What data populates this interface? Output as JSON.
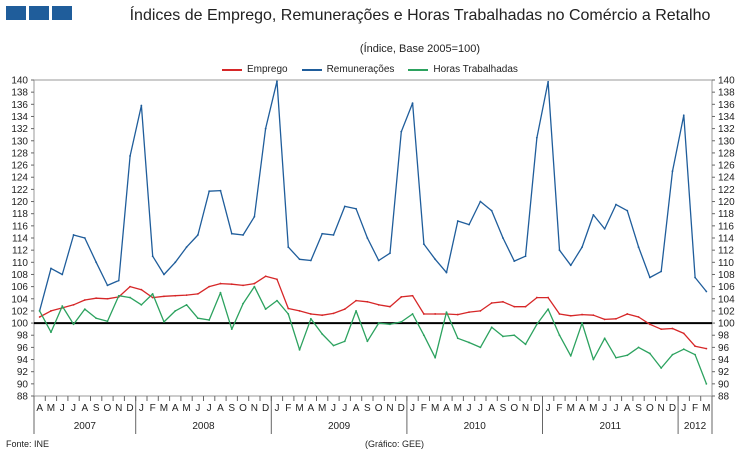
{
  "header": {
    "logo_icon": "ine-logo-icon"
  },
  "chart_data": {
    "type": "line",
    "title": "Índices de Emprego, Remunerações e Horas Trabalhadas no Comércio a Retalho",
    "subtitle": "(Índice, Base 2005=100)",
    "ylim": [
      88,
      140
    ],
    "ytick_step": 2,
    "reference_line": 100,
    "x_month_letters": [
      "A",
      "M",
      "J",
      "J",
      "A",
      "S",
      "O",
      "N",
      "D",
      "J",
      "F",
      "M",
      "A",
      "M",
      "J",
      "J",
      "A",
      "S",
      "O",
      "N",
      "D",
      "J",
      "F",
      "M",
      "A",
      "M",
      "J",
      "J",
      "A",
      "S",
      "O",
      "N",
      "D",
      "J",
      "F",
      "M",
      "A",
      "M",
      "J",
      "J",
      "A",
      "S",
      "O",
      "N",
      "D",
      "J",
      "F",
      "M",
      "A",
      "M",
      "J",
      "J",
      "A",
      "S",
      "O",
      "N",
      "D",
      "J",
      "F",
      "M"
    ],
    "years": [
      {
        "label": "2007",
        "start": 0,
        "count": 9
      },
      {
        "label": "2008",
        "start": 9,
        "count": 12
      },
      {
        "label": "2009",
        "start": 21,
        "count": 12
      },
      {
        "label": "2010",
        "start": 33,
        "count": 12
      },
      {
        "label": "2011",
        "start": 45,
        "count": 12
      },
      {
        "label": "2012",
        "start": 57,
        "count": 3
      }
    ],
    "series": [
      {
        "name": "Emprego",
        "color": "#d62728",
        "values": [
          101.0,
          102.0,
          102.5,
          103.0,
          103.8,
          104.1,
          104.0,
          104.3,
          106.0,
          105.5,
          104.2,
          104.4,
          104.5,
          104.6,
          104.8,
          106.0,
          106.5,
          106.4,
          106.2,
          106.5,
          107.7,
          107.2,
          102.4,
          102.0,
          101.5,
          101.3,
          101.6,
          102.3,
          103.7,
          103.5,
          103.0,
          102.7,
          104.3,
          104.5,
          101.5,
          101.5,
          101.5,
          101.4,
          101.8,
          102.0,
          103.3,
          103.5,
          102.7,
          102.7,
          104.2,
          104.2,
          101.5,
          101.2,
          101.4,
          101.3,
          100.6,
          100.7,
          101.5,
          101.0,
          99.8,
          99.0,
          99.1,
          98.3,
          96.2,
          95.8
        ]
      },
      {
        "name": "Remunerações",
        "color": "#1f5d9b",
        "values": [
          102.0,
          109.0,
          108.0,
          114.5,
          114.0,
          110.0,
          106.2,
          107.0,
          127.5,
          135.8,
          111.0,
          108.0,
          110.0,
          112.5,
          114.5,
          121.7,
          121.8,
          114.7,
          114.5,
          117.5,
          132.0,
          139.8,
          112.5,
          110.5,
          110.3,
          114.7,
          114.5,
          119.2,
          118.8,
          114.0,
          110.3,
          111.5,
          131.5,
          136.2,
          113.0,
          110.5,
          108.3,
          116.8,
          116.2,
          120.0,
          118.5,
          114.0,
          110.2,
          111.0,
          130.5,
          139.7,
          112.0,
          109.5,
          112.5,
          117.8,
          115.5,
          119.5,
          118.5,
          112.5,
          107.5,
          108.5,
          125.0,
          134.2,
          107.5,
          105.2
        ]
      },
      {
        "name": "Horas Trabalhadas",
        "color": "#2ca25f",
        "values": [
          102.0,
          98.5,
          102.8,
          99.8,
          102.3,
          100.8,
          100.3,
          104.5,
          104.2,
          103.0,
          104.8,
          100.2,
          102.0,
          103.0,
          100.8,
          100.5,
          105.0,
          99.0,
          103.2,
          106.0,
          102.3,
          103.7,
          101.5,
          95.6,
          100.7,
          98.2,
          96.3,
          97.0,
          102.0,
          97.0,
          100.0,
          99.8,
          100.2,
          101.5,
          98.0,
          94.3,
          101.8,
          97.5,
          96.8,
          96.0,
          99.3,
          97.8,
          98.0,
          96.5,
          99.8,
          102.3,
          98.0,
          94.6,
          100.0,
          94.0,
          97.5,
          94.3,
          94.7,
          96.0,
          95.0,
          92.6,
          94.8,
          95.7,
          94.8,
          90.0
        ]
      }
    ],
    "footer_left": "Fonte: INE",
    "footer_mid": "(Gráfico: GEE)"
  }
}
